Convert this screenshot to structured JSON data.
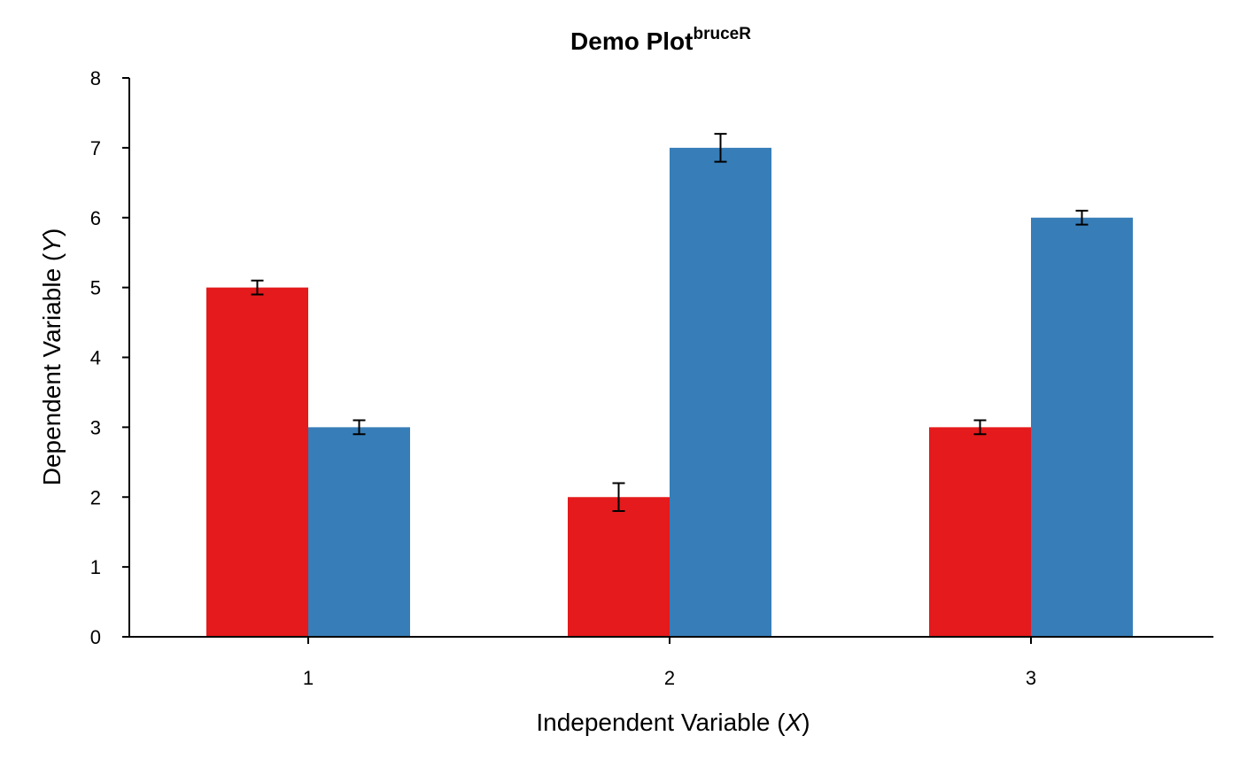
{
  "chart_data": {
    "type": "bar",
    "title": "Demo Plot",
    "title_superscript": "bruceR",
    "xlabel_prefix": "Independent Variable (",
    "xlabel_italic": "X",
    "xlabel_suffix": ")",
    "ylabel_prefix": "Dependent Variable (",
    "ylabel_italic": "Y",
    "ylabel_suffix": ")",
    "categories": [
      "1",
      "2",
      "3"
    ],
    "ylim": [
      0,
      8
    ],
    "yticks": [
      "0",
      "1",
      "2",
      "3",
      "4",
      "5",
      "6",
      "7",
      "8"
    ],
    "grid": false,
    "legend": "none",
    "series": [
      {
        "color": "#E41A1C",
        "values": [
          5,
          2,
          3
        ],
        "error": [
          0.1,
          0.2,
          0.1
        ]
      },
      {
        "color": "#377EB8",
        "values": [
          3,
          7,
          6
        ],
        "error": [
          0.1,
          0.2,
          0.1
        ]
      }
    ]
  }
}
